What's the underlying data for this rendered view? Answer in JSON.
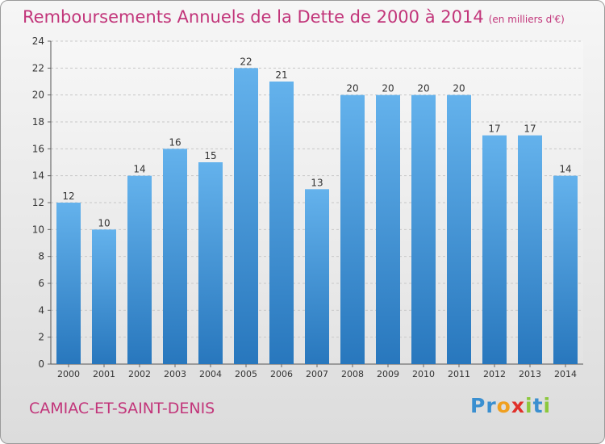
{
  "title": "Remboursements Annuels de la Dette de 2000 à 2014",
  "subtitle": "(en milliers d'€)",
  "commune": "CAMIAC-ET-SAINT-DENIS",
  "logo": {
    "letters": [
      "P",
      "r",
      "o",
      "x",
      "i",
      "t",
      "i"
    ]
  },
  "colors": {
    "title": "#c2357a",
    "bar_top": "#64b2ec",
    "bar_bottom": "#2877bd",
    "logo": [
      "#3a8fd0",
      "#3a8fd0",
      "#f0a020",
      "#e0302a",
      "#8cc83c",
      "#3a8fd0",
      "#8cc83c"
    ]
  },
  "chart_data": {
    "type": "bar",
    "categories": [
      "2000",
      "2001",
      "2002",
      "2003",
      "2004",
      "2005",
      "2006",
      "2007",
      "2008",
      "2009",
      "2010",
      "2011",
      "2012",
      "2013",
      "2014"
    ],
    "values": [
      12,
      10,
      14,
      16,
      15,
      22,
      21,
      13,
      20,
      20,
      20,
      20,
      17,
      17,
      14
    ],
    "ylim": [
      0,
      24
    ],
    "yticks": [
      0,
      2,
      4,
      6,
      8,
      10,
      12,
      14,
      16,
      18,
      20,
      22,
      24
    ],
    "grid": true,
    "data_labels": true
  }
}
